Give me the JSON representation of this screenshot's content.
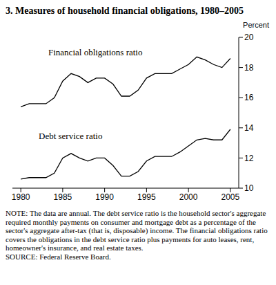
{
  "chart_data": {
    "type": "line",
    "title": "3.  Measures of household financial obligations, 1980–2005",
    "y_label": "Percent",
    "x": [
      1980,
      1981,
      1982,
      1983,
      1984,
      1985,
      1986,
      1987,
      1988,
      1989,
      1990,
      1991,
      1992,
      1993,
      1994,
      1995,
      1996,
      1997,
      1998,
      1999,
      2000,
      2001,
      2002,
      2003,
      2004,
      2005
    ],
    "series": [
      {
        "name": "Financial obligations ratio",
        "color": "#000000",
        "values": [
          15.4,
          15.6,
          15.6,
          15.6,
          16.0,
          17.1,
          17.6,
          17.4,
          17.0,
          17.3,
          17.3,
          16.9,
          16.1,
          16.1,
          16.5,
          17.3,
          17.6,
          17.6,
          17.6,
          17.9,
          18.2,
          18.7,
          18.5,
          18.2,
          18.0,
          18.6
        ]
      },
      {
        "name": "Debt service ratio",
        "color": "#000000",
        "values": [
          10.6,
          10.7,
          10.7,
          10.7,
          11.0,
          12.0,
          12.3,
          12.0,
          11.8,
          12.0,
          12.0,
          11.5,
          10.8,
          10.8,
          11.1,
          11.8,
          12.1,
          12.1,
          12.1,
          12.4,
          12.8,
          13.2,
          13.3,
          13.2,
          13.2,
          13.9
        ]
      }
    ],
    "xlim": [
      1979,
      2006
    ],
    "xticks": [
      1980,
      1985,
      1990,
      1995,
      2000,
      2005
    ],
    "ylim": [
      10,
      20
    ],
    "yticks": [
      10,
      12,
      14,
      16,
      18,
      20
    ],
    "grid": false,
    "note": "NOTE: The data are annual. The debt service ratio is the household sector's aggregate required monthly payments on consumer and mortgage debt as a percentage of the sector's aggregate after-tax (that is, disposable) income. The financial obligations ratio covers the obligations in the debt service ratio plus payments for auto leases, rent, homeowner's insurance, and real estate taxes.",
    "source": "SOURCE: Federal Reserve Board."
  }
}
